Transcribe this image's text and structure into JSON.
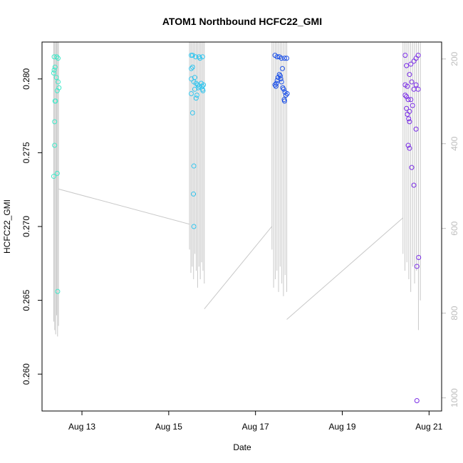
{
  "chart_data": {
    "type": "scatter",
    "title": "ATOM1 Northbound HCFC22_GMI",
    "xlabel": "Date",
    "ylabel": "HCFC22_GMI",
    "x_unit": "days (August 2016)",
    "xlim": [
      12.08,
      21.29
    ],
    "ylim": [
      0.2575,
      0.2825
    ],
    "x_ticks": [
      13,
      15,
      17,
      19,
      21
    ],
    "x_tick_labels": [
      "Aug 13",
      "Aug 15",
      "Aug 17",
      "Aug 19",
      "Aug 21"
    ],
    "y_ticks": [
      0.26,
      0.265,
      0.27,
      0.275,
      0.28
    ],
    "y_tick_labels": [
      "0.260",
      "0.265",
      "0.270",
      "0.275",
      "0.280"
    ],
    "y2_label": "",
    "y2_ticks": [
      200,
      400,
      600,
      800,
      1000
    ],
    "y2_tick_labels": [
      "200",
      "400",
      "600",
      "800",
      "1000"
    ],
    "y2lim": [
      1031,
      160
    ],
    "grid": false,
    "legend": "none",
    "series": [
      {
        "color": "#3fe9c9",
        "points": [
          [
            12.36,
            0.2815
          ],
          [
            12.42,
            0.2815
          ],
          [
            12.45,
            0.2814
          ],
          [
            12.38,
            0.2808
          ],
          [
            12.36,
            0.2806
          ],
          [
            12.35,
            0.2804
          ],
          [
            12.41,
            0.2801
          ],
          [
            12.47,
            0.2794
          ],
          [
            12.43,
            0.2792
          ],
          [
            12.45,
            0.2798
          ],
          [
            12.38,
            0.2785
          ],
          [
            12.39,
            0.2785
          ],
          [
            12.37,
            0.2771
          ],
          [
            12.37,
            0.2755
          ],
          [
            12.43,
            0.2736
          ],
          [
            12.35,
            0.2734
          ],
          [
            12.44,
            0.2656
          ]
        ]
      },
      {
        "color": "#33c6ef",
        "points": [
          [
            15.52,
            0.2816
          ],
          [
            15.55,
            0.2816
          ],
          [
            15.62,
            0.2815
          ],
          [
            15.7,
            0.2815
          ],
          [
            15.78,
            0.2815
          ],
          [
            15.72,
            0.2814
          ],
          [
            15.55,
            0.2808
          ],
          [
            15.52,
            0.2807
          ],
          [
            15.6,
            0.2801
          ],
          [
            15.52,
            0.28
          ],
          [
            15.58,
            0.2798
          ],
          [
            15.63,
            0.2797
          ],
          [
            15.67,
            0.2796
          ],
          [
            15.75,
            0.2797
          ],
          [
            15.8,
            0.2796
          ],
          [
            15.7,
            0.2795
          ],
          [
            15.77,
            0.2795
          ],
          [
            15.68,
            0.2794
          ],
          [
            15.78,
            0.2793
          ],
          [
            15.79,
            0.2792
          ],
          [
            15.6,
            0.2793
          ],
          [
            15.52,
            0.279
          ],
          [
            15.63,
            0.2787
          ],
          [
            15.65,
            0.2789
          ],
          [
            15.55,
            0.2777
          ],
          [
            15.58,
            0.2741
          ],
          [
            15.57,
            0.2722
          ],
          [
            15.58,
            0.27
          ]
        ]
      },
      {
        "color": "#1a4fe8",
        "points": [
          [
            17.45,
            0.2816
          ],
          [
            17.5,
            0.2815
          ],
          [
            17.55,
            0.2815
          ],
          [
            17.6,
            0.2814
          ],
          [
            17.67,
            0.2814
          ],
          [
            17.72,
            0.2814
          ],
          [
            17.55,
            0.2803
          ],
          [
            17.57,
            0.2802
          ],
          [
            17.52,
            0.2801
          ],
          [
            17.5,
            0.2799
          ],
          [
            17.48,
            0.2797
          ],
          [
            17.45,
            0.2796
          ],
          [
            17.47,
            0.2795
          ],
          [
            17.58,
            0.28
          ],
          [
            17.62,
            0.2807
          ],
          [
            17.65,
            0.2793
          ],
          [
            17.68,
            0.2791
          ],
          [
            17.7,
            0.2789
          ],
          [
            17.73,
            0.279
          ],
          [
            17.66,
            0.2786
          ],
          [
            17.67,
            0.2785
          ],
          [
            17.6,
            0.2798
          ],
          [
            17.63,
            0.2794
          ]
        ]
      },
      {
        "color": "#7a2de6",
        "points": [
          [
            20.45,
            0.2816
          ],
          [
            20.75,
            0.2816
          ],
          [
            20.7,
            0.2814
          ],
          [
            20.65,
            0.2812
          ],
          [
            20.58,
            0.281
          ],
          [
            20.48,
            0.2809
          ],
          [
            20.55,
            0.2803
          ],
          [
            20.6,
            0.2798
          ],
          [
            20.5,
            0.2795
          ],
          [
            20.45,
            0.2796
          ],
          [
            20.7,
            0.2796
          ],
          [
            20.65,
            0.2793
          ],
          [
            20.75,
            0.2793
          ],
          [
            20.45,
            0.2789
          ],
          [
            20.48,
            0.2788
          ],
          [
            20.52,
            0.2786
          ],
          [
            20.58,
            0.2786
          ],
          [
            20.62,
            0.2782
          ],
          [
            20.55,
            0.2778
          ],
          [
            20.48,
            0.278
          ],
          [
            20.5,
            0.2776
          ],
          [
            20.53,
            0.2773
          ],
          [
            20.55,
            0.2771
          ],
          [
            20.7,
            0.2766
          ],
          [
            20.52,
            0.2755
          ],
          [
            20.55,
            0.2753
          ],
          [
            20.6,
            0.274
          ],
          [
            20.65,
            0.2728
          ],
          [
            20.76,
            0.2679
          ],
          [
            20.72,
            0.2673
          ],
          [
            20.72,
            0.2582
          ]
        ]
      }
    ],
    "altitude_trace": {
      "color": "#c8c8c8",
      "note_units": "right axis",
      "segments": [
        {
          "x_start": 12.35,
          "x_end": 12.46,
          "top": 160,
          "bottom_values": [
            820,
            840,
            850,
            805,
            855,
            830
          ]
        },
        {
          "x_start": 15.48,
          "x_end": 15.82,
          "top": 160,
          "bottom_values": [
            650,
            705,
            690,
            720,
            660,
            700,
            740,
            690,
            720,
            680,
            700,
            730
          ]
        },
        {
          "x_start": 17.38,
          "x_end": 17.72,
          "top": 160,
          "bottom_values": [
            650,
            740,
            720,
            700,
            750,
            690,
            730,
            760,
            710,
            750
          ]
        },
        {
          "x_start": 20.4,
          "x_end": 20.8,
          "top": 160,
          "bottom_values": [
            660,
            700,
            680,
            720,
            750,
            690,
            730,
            700,
            840,
            770
          ]
        }
      ],
      "connectors": [
        [
          [
            12.46,
            507
          ],
          [
            15.48,
            590
          ]
        ],
        [
          [
            15.82,
            790
          ],
          [
            17.38,
            595
          ]
        ],
        [
          [
            17.72,
            815
          ],
          [
            20.4,
            575
          ]
        ]
      ]
    }
  }
}
